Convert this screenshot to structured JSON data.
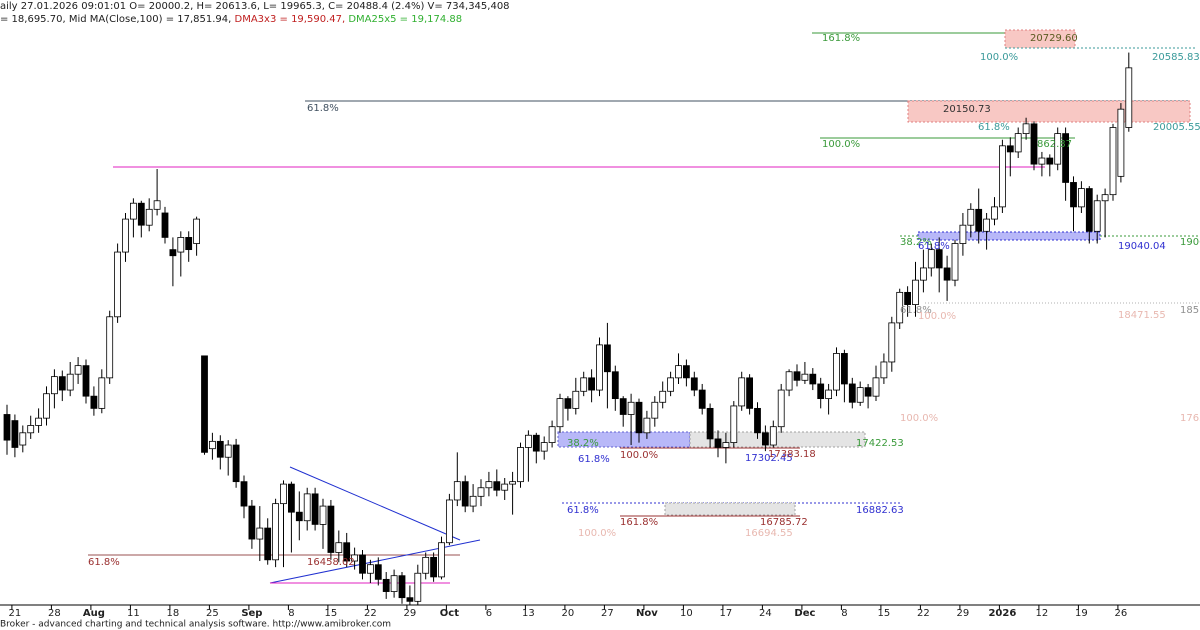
{
  "chart_data": {
    "type": "candlestick",
    "header": "aily 27.01.2026 09:01:01 O= 20000.2, H= 20613.6, L= 19965.3, C= 20488.4 (2.4%) V= 734,345,408",
    "indicators": [
      {
        "text": "= 18,695.70, ",
        "color": "#202020"
      },
      {
        "text": "Mid MA(Close,100) = 17,851.94, ",
        "color": "#202020"
      },
      {
        "text": "DMA3x3 = 19,590.47, ",
        "color": "#c02020"
      },
      {
        "text": "DMA25x5 = 19,174.88",
        "color": "#30b030"
      }
    ],
    "footer": "Broker - advanced charting and technical analysis software. http://www.amibroker.com",
    "up_color": "#ffffff",
    "down_color": "#000000",
    "ylim": [
      16090,
      21044
    ],
    "categories": [
      null,
      "21",
      null,
      null,
      null,
      null,
      "28",
      null,
      null,
      null,
      null,
      "Aug",
      null,
      null,
      null,
      null,
      "11",
      null,
      null,
      null,
      null,
      "18",
      null,
      null,
      null,
      null,
      "25",
      null,
      null,
      null,
      null,
      "Sep",
      null,
      null,
      null,
      null,
      "8",
      null,
      null,
      null,
      null,
      "15",
      null,
      null,
      null,
      null,
      "22",
      null,
      null,
      null,
      null,
      "29",
      null,
      null,
      null,
      null,
      "Oct",
      null,
      null,
      null,
      null,
      "6",
      null,
      null,
      null,
      null,
      "13",
      null,
      null,
      null,
      null,
      "20",
      null,
      null,
      null,
      null,
      "27",
      null,
      null,
      null,
      null,
      "Nov",
      null,
      null,
      null,
      null,
      "10",
      null,
      null,
      null,
      null,
      "17",
      null,
      null,
      null,
      null,
      "24",
      null,
      null,
      null,
      null,
      "Dec",
      null,
      null,
      null,
      null,
      "8",
      null,
      null,
      null,
      null,
      "15",
      null,
      null,
      null,
      null,
      "22",
      null,
      null,
      null,
      null,
      "29",
      null,
      null,
      null,
      null,
      "2026",
      null,
      null,
      null,
      null,
      "12",
      null,
      null,
      null,
      null,
      "19",
      null,
      null,
      null,
      null,
      "26",
      null
    ],
    "bold_labels": [
      "Aug",
      "Sep",
      "Oct",
      "Nov",
      "Dec",
      "2026"
    ],
    "open": [
      17650,
      17600,
      17400,
      17500,
      17560,
      17620,
      17820,
      17960,
      17850,
      17980,
      18050,
      17800,
      17700,
      17950,
      18450,
      18980,
      19250,
      19380,
      19200,
      19330,
      19300,
      19000,
      18980,
      19100,
      19050,
      18130,
      17370,
      17430,
      17300,
      17400,
      17100,
      16900,
      16630,
      16720,
      16460,
      16920,
      17080,
      16850,
      16780,
      17000,
      16750,
      16900,
      16520,
      16600,
      16450,
      16500,
      16350,
      16420,
      16300,
      16200,
      16330,
      16150,
      16120,
      16350,
      16480,
      16320,
      16600,
      16950,
      17100,
      16900,
      16980,
      17050,
      17100,
      17030,
      17080,
      17100,
      17380,
      17480,
      17350,
      17420,
      17550,
      17780,
      17700,
      17840,
      17950,
      17850,
      18220,
      18000,
      17780,
      17650,
      17750,
      17500,
      17620,
      17750,
      17840,
      17950,
      18050,
      17950,
      17850,
      17700,
      17450,
      17380,
      17420,
      17720,
      17950,
      17700,
      17500,
      17400,
      17550,
      17850,
      18000,
      17930,
      17980,
      17900,
      17780,
      17850,
      18150,
      17900,
      17750,
      17870,
      17800,
      17950,
      18080,
      18400,
      18650,
      18550,
      18750,
      18850,
      19000,
      18850,
      18750,
      19050,
      19200,
      19330,
      19150,
      19250,
      19350,
      19850,
      19800,
      19950,
      20030,
      19700,
      19750,
      19700,
      19950,
      19550,
      19350,
      19500,
      19150,
      19400,
      19450,
      19600,
      20000.2
    ],
    "high": [
      17730,
      17650,
      17560,
      17640,
      17700,
      17880,
      18020,
      18010,
      18080,
      18120,
      18100,
      17880,
      18020,
      18500,
      19050,
      19300,
      19420,
      19400,
      19420,
      19660,
      19350,
      19100,
      19150,
      19150,
      19270,
      18130,
      17500,
      17480,
      17440,
      17450,
      17150,
      16950,
      16900,
      16800,
      16960,
      17110,
      17100,
      17020,
      17050,
      17050,
      16960,
      16950,
      16700,
      16680,
      16560,
      16540,
      16460,
      16480,
      16360,
      16380,
      16360,
      16250,
      16420,
      16520,
      16520,
      16650,
      17000,
      17340,
      17150,
      17080,
      17120,
      17180,
      17200,
      17130,
      17180,
      17420,
      17520,
      17500,
      17470,
      17600,
      17820,
      17800,
      17950,
      18000,
      18020,
      18280,
      18400,
      18050,
      17800,
      17820,
      17780,
      17680,
      17800,
      17920,
      18000,
      18150,
      18100,
      18000,
      17900,
      17740,
      17520,
      17500,
      17760,
      18000,
      17980,
      17750,
      17560,
      17600,
      17900,
      18020,
      18060,
      18080,
      18030,
      17950,
      17900,
      18200,
      18180,
      17950,
      17920,
      17900,
      18050,
      18150,
      18450,
      18680,
      18700,
      18900,
      19000,
      19050,
      19100,
      18950,
      19080,
      19300,
      19380,
      19500,
      19300,
      19430,
      19900,
      19920,
      20000,
      20080,
      20050,
      19800,
      19780,
      20000,
      20000,
      19600,
      19560,
      19520,
      19450,
      19500,
      20030,
      20200,
      20613.6
    ],
    "low": [
      17320,
      17300,
      17340,
      17450,
      17500,
      17560,
      17700,
      17760,
      17800,
      17900,
      17740,
      17640,
      17660,
      17900,
      18400,
      18900,
      19100,
      19100,
      19150,
      19280,
      19050,
      18700,
      18780,
      18900,
      18950,
      17320,
      17280,
      17200,
      17150,
      17050,
      16800,
      16550,
      16450,
      16420,
      16400,
      16400,
      16520,
      16620,
      16700,
      16700,
      16550,
      16460,
      16440,
      16400,
      16380,
      16300,
      16270,
      16250,
      16140,
      16150,
      16100,
      16090,
      16090,
      16300,
      16280,
      16300,
      16580,
      16900,
      16850,
      16850,
      16900,
      16980,
      16980,
      16950,
      16830,
      17050,
      17100,
      17250,
      17280,
      17380,
      17500,
      17600,
      17650,
      17800,
      17750,
      17800,
      17700,
      17680,
      17550,
      17400,
      17420,
      17450,
      17550,
      17700,
      17800,
      17900,
      17880,
      17800,
      17650,
      17380,
      17300,
      17250,
      17380,
      17680,
      17650,
      17450,
      17350,
      17380,
      17500,
      17800,
      17880,
      17900,
      17850,
      17700,
      17650,
      17800,
      17750,
      17700,
      17720,
      17700,
      17760,
      17900,
      18000,
      18350,
      18450,
      18450,
      18650,
      18780,
      18650,
      18580,
      18700,
      18950,
      19100,
      19050,
      19000,
      19200,
      19300,
      19600,
      19750,
      19900,
      19650,
      19600,
      19600,
      19650,
      19400,
      19150,
      19300,
      19050,
      19050,
      19100,
      19400,
      19550,
      19965.3
    ],
    "close": [
      17440,
      17380,
      17500,
      17560,
      17620,
      17820,
      17960,
      17850,
      17980,
      18050,
      17800,
      17700,
      17950,
      18450,
      18980,
      19250,
      19380,
      19200,
      19330,
      19400,
      19100,
      18950,
      19100,
      19000,
      19250,
      17340,
      17430,
      17300,
      17400,
      17100,
      16900,
      16630,
      16720,
      16460,
      16920,
      17080,
      16850,
      16780,
      17000,
      16750,
      16900,
      16520,
      16600,
      16450,
      16500,
      16350,
      16420,
      16300,
      16200,
      16330,
      16150,
      16120,
      16350,
      16480,
      16320,
      16600,
      16950,
      17100,
      16900,
      16980,
      17050,
      17100,
      17030,
      17080,
      17100,
      17380,
      17480,
      17350,
      17420,
      17550,
      17780,
      17700,
      17840,
      17950,
      17850,
      18220,
      18000,
      17780,
      17650,
      17750,
      17500,
      17620,
      17750,
      17840,
      17950,
      18050,
      17950,
      17850,
      17700,
      17450,
      17380,
      17420,
      17720,
      17950,
      17700,
      17500,
      17400,
      17550,
      17850,
      18000,
      17930,
      17980,
      17900,
      17780,
      17850,
      18150,
      17900,
      17750,
      17870,
      17800,
      17950,
      18080,
      18400,
      18650,
      18550,
      18750,
      18850,
      19000,
      18850,
      18750,
      19050,
      19200,
      19330,
      19150,
      19250,
      19350,
      19850,
      19800,
      19950,
      20030,
      19700,
      19750,
      19700,
      19950,
      19550,
      19350,
      19500,
      19150,
      19400,
      19450,
      20000,
      20150,
      20488.4
    ],
    "annotations": [
      {
        "text": "161.8%",
        "color": "#3a9a3a"
      },
      {
        "text": "20729.60",
        "color": "#5a5a20"
      },
      {
        "text": "100.0%",
        "color": "#3a9a9a"
      },
      {
        "text": "20585.83",
        "color": "#3a9a9a"
      },
      {
        "text": "61.8%",
        "color": "#405060"
      },
      {
        "text": "20150.73",
        "color": "#303030"
      },
      {
        "text": "61.8%",
        "color": "#3a9a9a"
      },
      {
        "text": "20005.55",
        "color": "#3a9a9a"
      },
      {
        "text": "100.0%",
        "color": "#3a9a3a"
      },
      {
        "text": "862.87",
        "color": "#3a9a3a"
      },
      {
        "text": "38.2%",
        "color": "#3a9a3a"
      },
      {
        "text": "61.8%",
        "color": "#3030d0"
      },
      {
        "text": "19040.04",
        "color": "#3030d0"
      },
      {
        "text": "1906",
        "color": "#3a9a3a"
      },
      {
        "text": "61.8%",
        "color": "#909090"
      },
      {
        "text": "100.0%",
        "color": "#e8b8b0"
      },
      {
        "text": "18471.55",
        "color": "#e8b8b0"
      },
      {
        "text": "1851",
        "color": "#909090"
      },
      {
        "text": "100.0%",
        "color": "#e8b8b0"
      },
      {
        "text": "1763",
        "color": "#e8b8b0"
      },
      {
        "text": "38.2%",
        "color": "#3a9a3a"
      },
      {
        "text": "61.8%",
        "color": "#3030d0"
      },
      {
        "text": "100.0%",
        "color": "#9a3030"
      },
      {
        "text": "17302.45",
        "color": "#3030d0"
      },
      {
        "text": "17383.18",
        "color": "#9a3030"
      },
      {
        "text": "17422.53",
        "color": "#3a9a3a"
      },
      {
        "text": "61.8%",
        "color": "#3030d0"
      },
      {
        "text": "16882.63",
        "color": "#3030d0"
      },
      {
        "text": "161.8%",
        "color": "#9a3030"
      },
      {
        "text": "16785.72",
        "color": "#9a3030"
      },
      {
        "text": "100.0%",
        "color": "#e8b8b0"
      },
      {
        "text": "16694.55",
        "color": "#e8b8b0"
      },
      {
        "text": "61.8%",
        "color": "#9a3030"
      },
      {
        "text": "16458.02",
        "color": "#9a3030"
      }
    ]
  }
}
